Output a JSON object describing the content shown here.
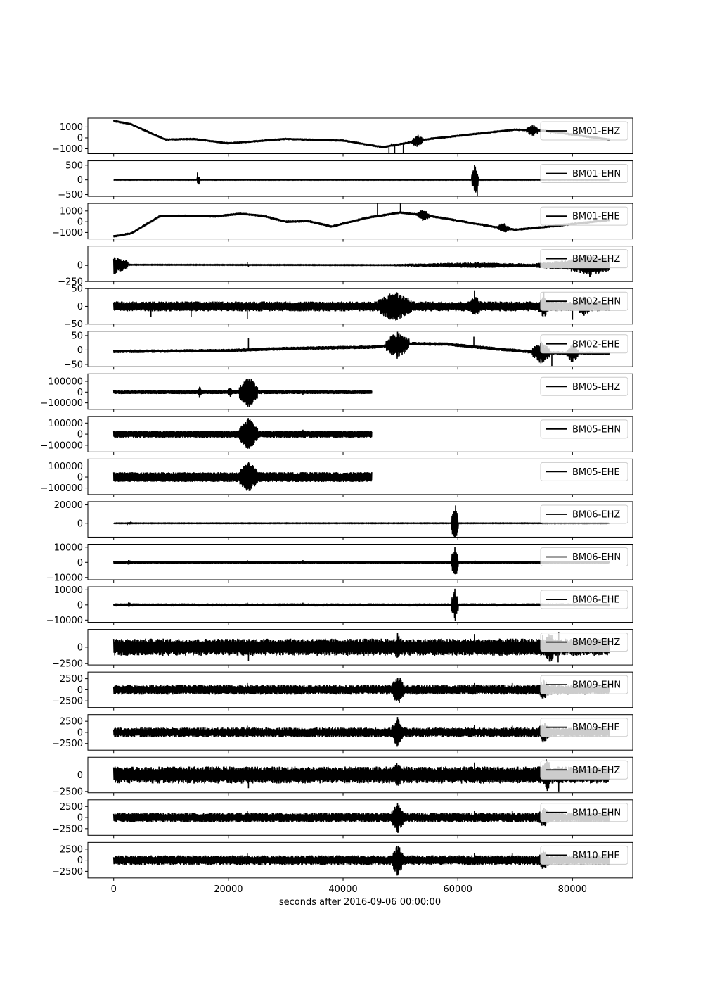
{
  "chart_data": {
    "type": "line",
    "xlabel": "seconds after 2016-09-06 00:00:00",
    "xlim": [
      -4500,
      90500
    ],
    "x_ticks": [
      0,
      20000,
      40000,
      60000,
      80000
    ],
    "x_tick_labels": [
      "0",
      "20000",
      "40000",
      "60000",
      "80000"
    ],
    "line_color": "#000000",
    "legend_placement": "upper right",
    "traces": [
      {
        "name": "BM01-EHZ",
        "ylim": [
          -1450,
          1800
        ],
        "yticks": [
          1000,
          0,
          -1000
        ],
        "ytick_labels": [
          "1000",
          "0",
          "−1000"
        ],
        "x_end": 86400,
        "noise": 110,
        "baseline": [
          [
            0,
            1550
          ],
          [
            3000,
            1250
          ],
          [
            9000,
            -150
          ],
          [
            14000,
            -100
          ],
          [
            20000,
            -500
          ],
          [
            30000,
            -100
          ],
          [
            40000,
            -250
          ],
          [
            47000,
            -850
          ],
          [
            55000,
            -100
          ],
          [
            62000,
            300
          ],
          [
            70000,
            750
          ],
          [
            75000,
            650
          ],
          [
            86400,
            -150
          ]
        ],
        "bursts": [
          [
            53000,
            1000,
            600
          ],
          [
            73000,
            1000,
            600
          ],
          [
            88000,
            400,
            600
          ]
        ],
        "spikes": [
          [
            49000,
            -1300
          ],
          [
            50500,
            -1250
          ],
          [
            48000,
            -1150
          ]
        ]
      },
      {
        "name": "BM01-EHN",
        "ylim": [
          -560,
          650
        ],
        "yticks": [
          500,
          0,
          -500
        ],
        "ytick_labels": [
          "500",
          "0",
          "−500"
        ],
        "x_end": 86400,
        "noise": 8,
        "baseline": [
          [
            0,
            0
          ],
          [
            86400,
            0
          ]
        ],
        "bursts": [
          [
            14800,
            250,
            200
          ],
          [
            63000,
            600,
            500
          ]
        ],
        "spikes": [
          [
            14600,
            250
          ],
          [
            63400,
            -580
          ],
          [
            62900,
            500
          ],
          [
            32800,
            -30
          ]
        ]
      },
      {
        "name": "BM01-EHE",
        "ylim": [
          -1600,
          1700
        ],
        "yticks": [
          1000,
          0,
          -1000
        ],
        "ytick_labels": [
          "1000",
          "0",
          "−1000"
        ],
        "x_end": 86400,
        "noise": 120,
        "baseline": [
          [
            0,
            -1350
          ],
          [
            3000,
            -1100
          ],
          [
            8000,
            500
          ],
          [
            12000,
            550
          ],
          [
            18000,
            500
          ],
          [
            22000,
            750
          ],
          [
            26000,
            550
          ],
          [
            30000,
            0
          ],
          [
            34000,
            50
          ],
          [
            38000,
            -450
          ],
          [
            44000,
            350
          ],
          [
            50000,
            850
          ],
          [
            55000,
            550
          ],
          [
            60000,
            100
          ],
          [
            66000,
            -450
          ],
          [
            70000,
            -750
          ],
          [
            75000,
            -500
          ],
          [
            86400,
            150
          ]
        ],
        "bursts": [
          [
            54000,
            1000,
            600
          ],
          [
            68000,
            1000,
            500
          ]
        ],
        "spikes": [
          [
            46000,
            1200
          ],
          [
            50000,
            1300
          ]
        ]
      },
      {
        "name": "BM02-EHZ",
        "ylim": [
          -250,
          300
        ],
        "yticks": [
          0,
          -250
        ],
        "ytick_labels": [
          "0",
          "−250"
        ],
        "x_end": 86400,
        "noise": 5,
        "baseline": [
          [
            0,
            10
          ],
          [
            86400,
            0
          ]
        ],
        "bursts": [
          [
            0,
            2500,
            150
          ],
          [
            63000,
            14000,
            45
          ],
          [
            80000,
            6400,
            90
          ],
          [
            83000,
            4000,
            180
          ]
        ],
        "spikes": [
          [
            23300,
            40
          ],
          [
            23500,
            -30
          ]
        ]
      },
      {
        "name": "BM02-EHN",
        "ylim": [
          -50,
          50
        ],
        "yticks": [
          50,
          0,
          -50
        ],
        "ytick_labels": [
          "50",
          "0",
          "−50"
        ],
        "x_end": 86400,
        "noise": 14,
        "baseline": [
          [
            0,
            0
          ],
          [
            86400,
            0
          ]
        ],
        "bursts": [
          [
            49000,
            3000,
            45
          ],
          [
            63000,
            1000,
            35
          ],
          [
            75000,
            1000,
            35
          ],
          [
            82000,
            1200,
            30
          ]
        ],
        "spikes": [
          [
            6500,
            -30
          ],
          [
            13500,
            -30
          ],
          [
            23300,
            -35
          ],
          [
            62900,
            45
          ],
          [
            75000,
            40
          ],
          [
            80000,
            -38
          ]
        ]
      },
      {
        "name": "BM02-EHE",
        "ylim": [
          -58,
          65
        ],
        "yticks": [
          50,
          0,
          -50
        ],
        "ytick_labels": [
          "50",
          "0",
          "−50"
        ],
        "x_end": 86400,
        "noise": 6,
        "baseline": [
          [
            0,
            -5
          ],
          [
            20000,
            -2
          ],
          [
            30000,
            5
          ],
          [
            45000,
            10
          ],
          [
            52000,
            22
          ],
          [
            58000,
            20
          ],
          [
            66000,
            5
          ],
          [
            75000,
            -10
          ],
          [
            86400,
            -12
          ]
        ],
        "bursts": [
          [
            49500,
            2000,
            50
          ],
          [
            74500,
            1500,
            40
          ],
          [
            80000,
            1000,
            35
          ]
        ],
        "spikes": [
          [
            23500,
            42
          ],
          [
            62800,
            35
          ],
          [
            76400,
            -45
          ]
        ]
      },
      {
        "name": "BM05-EHZ",
        "ylim": [
          -160000,
          170000
        ],
        "yticks": [
          100000,
          0,
          -100000
        ],
        "ytick_labels": [
          "100000",
          "0",
          "−100000"
        ],
        "x_end": 45000,
        "noise": 18000,
        "baseline": [
          [
            0,
            0
          ],
          [
            45000,
            0
          ]
        ],
        "bursts": [
          [
            23500,
            1600,
            150000
          ],
          [
            15000,
            300,
            60000
          ],
          [
            20300,
            300,
            50000
          ]
        ],
        "spikes": [
          [
            33000,
            -30000
          ]
        ]
      },
      {
        "name": "BM05-EHN",
        "ylim": [
          -160000,
          160000
        ],
        "yticks": [
          100000,
          0,
          -100000
        ],
        "ytick_labels": [
          "100000",
          "0",
          "−100000"
        ],
        "x_end": 45000,
        "noise": 32000,
        "baseline": [
          [
            0,
            0
          ],
          [
            45000,
            0
          ]
        ],
        "bursts": [
          [
            23500,
            1600,
            150000
          ]
        ],
        "spikes": [
          [
            33000,
            40000
          ]
        ]
      },
      {
        "name": "BM05-EHE",
        "ylim": [
          -160000,
          165000
        ],
        "yticks": [
          100000,
          0,
          -100000
        ],
        "ytick_labels": [
          "100000",
          "0",
          "−100000"
        ],
        "x_end": 45000,
        "noise": 45000,
        "baseline": [
          [
            0,
            0
          ],
          [
            45000,
            0
          ]
        ],
        "bursts": [
          [
            23500,
            1600,
            150000
          ]
        ],
        "spikes": []
      },
      {
        "name": "BM06-EHZ",
        "ylim": [
          -15000,
          23500
        ],
        "yticks": [
          20000,
          0
        ],
        "ytick_labels": [
          "20000",
          "0"
        ],
        "x_end": 86400,
        "noise": 300,
        "baseline": [
          [
            0,
            0
          ],
          [
            86400,
            0
          ]
        ],
        "bursts": [
          [
            59500,
            600,
            22000
          ],
          [
            2700,
            400,
            1500
          ]
        ],
        "spikes": []
      },
      {
        "name": "BM06-EHN",
        "ylim": [
          -11500,
          12000
        ],
        "yticks": [
          10000,
          0,
          -10000
        ],
        "ytick_labels": [
          "10000",
          "0",
          "−10000"
        ],
        "x_end": 86400,
        "noise": 1000,
        "baseline": [
          [
            0,
            0
          ],
          [
            86400,
            0
          ]
        ],
        "bursts": [
          [
            59500,
            600,
            11000
          ],
          [
            2700,
            400,
            2000
          ]
        ],
        "spikes": [
          [
            23300,
            1500
          ],
          [
            33000,
            1500
          ],
          [
            63000,
            1200
          ]
        ]
      },
      {
        "name": "BM06-EHE",
        "ylim": [
          -11500,
          12000
        ],
        "yticks": [
          10000,
          0,
          -10000
        ],
        "ytick_labels": [
          "10000",
          "0",
          "−10000"
        ],
        "x_end": 86400,
        "noise": 1000,
        "baseline": [
          [
            0,
            0
          ],
          [
            86400,
            0
          ]
        ],
        "bursts": [
          [
            59500,
            600,
            11000
          ],
          [
            2700,
            400,
            2000
          ]
        ],
        "spikes": [
          [
            23300,
            1500
          ],
          [
            33000,
            1500
          ]
        ]
      },
      {
        "name": "BM09-EHZ",
        "ylim": [
          -2700,
          2700
        ],
        "yticks": [
          0,
          -2500
        ],
        "ytick_labels": [
          "0",
          "−2500"
        ],
        "x_end": 86400,
        "noise": 1300,
        "baseline": [
          [
            0,
            0
          ],
          [
            86400,
            0
          ]
        ],
        "bursts": [
          [
            49500,
            800,
            2200
          ],
          [
            76000,
            1000,
            2600
          ]
        ],
        "spikes": [
          [
            23500,
            -2100
          ],
          [
            62900,
            2000
          ],
          [
            74800,
            1800
          ],
          [
            77600,
            2300
          ],
          [
            77500,
            -2300
          ]
        ]
      },
      {
        "name": "BM09-EHN",
        "ylim": [
          -4000,
          4000
        ],
        "yticks": [
          2500,
          0,
          -2500
        ],
        "ytick_labels": [
          "2500",
          "0",
          "−2500"
        ],
        "x_end": 86400,
        "noise": 1100,
        "baseline": [
          [
            0,
            0
          ],
          [
            86400,
            0
          ]
        ],
        "bursts": [
          [
            49500,
            1000,
            3700
          ],
          [
            75000,
            1000,
            2500
          ]
        ],
        "spikes": [
          [
            23300,
            1500
          ],
          [
            62900,
            1500
          ],
          [
            69500,
            1500
          ]
        ]
      },
      {
        "name": "BM09-EHE",
        "ylim": [
          -4000,
          4000
        ],
        "yticks": [
          2500,
          0,
          -2500
        ],
        "ytick_labels": [
          "2500",
          "0",
          "−2500"
        ],
        "x_end": 86400,
        "noise": 1100,
        "baseline": [
          [
            0,
            0
          ],
          [
            86400,
            0
          ]
        ],
        "bursts": [
          [
            49500,
            1000,
            3600
          ],
          [
            75000,
            1000,
            2500
          ]
        ],
        "spikes": [
          [
            23300,
            1500
          ],
          [
            62900,
            1600
          ],
          [
            69500,
            1500
          ]
        ]
      },
      {
        "name": "BM10-EHZ",
        "ylim": [
          -2700,
          2700
        ],
        "yticks": [
          0,
          -2500
        ],
        "ytick_labels": [
          "0",
          "−2500"
        ],
        "x_end": 86400,
        "noise": 1300,
        "baseline": [
          [
            0,
            0
          ],
          [
            86400,
            0
          ]
        ],
        "bursts": [
          [
            49500,
            800,
            2300
          ],
          [
            75500,
            1000,
            2600
          ]
        ],
        "spikes": [
          [
            23500,
            -2000
          ],
          [
            62900,
            1900
          ],
          [
            77600,
            -2500
          ]
        ]
      },
      {
        "name": "BM10-EHN",
        "ylim": [
          -4000,
          4000
        ],
        "yticks": [
          2500,
          0,
          -2500
        ],
        "ytick_labels": [
          "2500",
          "0",
          "−2500"
        ],
        "x_end": 86400,
        "noise": 1100,
        "baseline": [
          [
            0,
            0
          ],
          [
            86400,
            0
          ]
        ],
        "bursts": [
          [
            49500,
            1000,
            3700
          ],
          [
            75000,
            1000,
            2500
          ]
        ],
        "spikes": [
          [
            23300,
            1500
          ],
          [
            62900,
            1500
          ],
          [
            69500,
            1500
          ]
        ]
      },
      {
        "name": "BM10-EHE",
        "ylim": [
          -4000,
          4000
        ],
        "yticks": [
          2500,
          0,
          -2500
        ],
        "ytick_labels": [
          "2500",
          "0",
          "−2500"
        ],
        "x_end": 86400,
        "noise": 1100,
        "baseline": [
          [
            0,
            0
          ],
          [
            86400,
            0
          ]
        ],
        "bursts": [
          [
            49500,
            1000,
            3700
          ],
          [
            75000,
            1000,
            2500
          ]
        ],
        "spikes": [
          [
            23300,
            1500
          ],
          [
            62900,
            1600
          ],
          [
            69500,
            1500
          ]
        ]
      }
    ]
  }
}
